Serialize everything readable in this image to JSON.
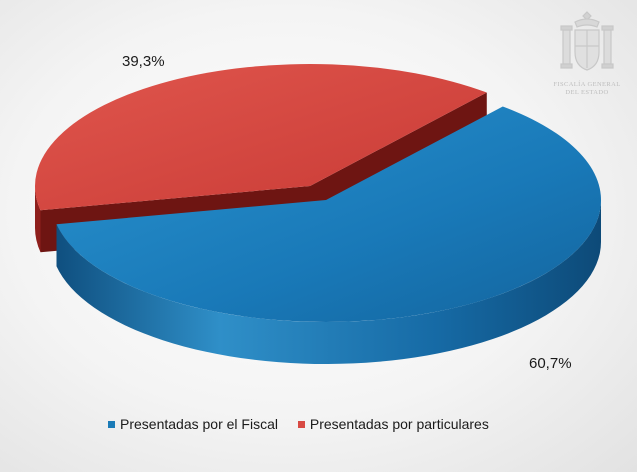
{
  "chart_data": {
    "type": "pie",
    "style": "3d-exploded",
    "slices": [
      {
        "name": "Presentadas por el Fiscal",
        "value": 60.7,
        "label": "60,7%",
        "color": "#1b7bb7"
      },
      {
        "name": "Presentadas por particulares",
        "value": 39.3,
        "label": "39,3%",
        "color": "#d84a43"
      }
    ],
    "legend_position": "bottom"
  },
  "logo": {
    "icon": "coat-of-arms-icon",
    "line1": "FISCALÍA GENERAL",
    "line2": "DEL ESTADO"
  }
}
